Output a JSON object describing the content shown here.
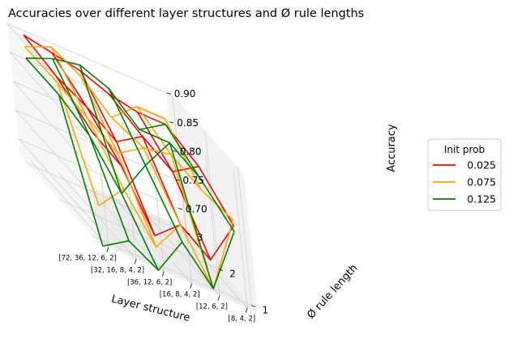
{
  "chart_data": {
    "type": "line",
    "title": "Accuracies over different layer structures and Ø rule lengths",
    "xlabel": "Layer structure",
    "ylabel": "Ø rule length",
    "zlabel": "Accuracy",
    "x_categories": [
      "[72, 36, 12, 6, 2]",
      "[32, 16, 8, 4, 2]",
      "[36, 12, 6, 2]",
      "[16, 8, 4, 2]",
      "[12, 6, 2]",
      "[8, 4, 2]"
    ],
    "y_ticks": [
      "1",
      "2",
      "3"
    ],
    "z_ticks": [
      "0.70",
      "0.75",
      "0.80",
      "0.85",
      "0.90"
    ],
    "zlim": [
      0.67,
      0.91
    ],
    "legend_title": "Init prob",
    "legend_placement": "center-right",
    "series": [
      {
        "name": "0.025",
        "color": "#ff0000",
        "values": [
          [
            0.86,
            0.82,
            0.72,
            0.76,
            0.72,
            0.8
          ],
          [
            0.89,
            0.86,
            0.82,
            0.85,
            0.81,
            0.84
          ],
          [
            0.9,
            0.89,
            0.88,
            0.86,
            0.85,
            0.85
          ]
        ]
      },
      {
        "name": "0.075",
        "color": "#ffa500",
        "values": [
          [
            0.73,
            0.78,
            0.7,
            0.76,
            0.67,
            0.81
          ],
          [
            0.88,
            0.84,
            0.8,
            0.83,
            0.84,
            0.8
          ],
          [
            0.88,
            0.9,
            0.87,
            0.82,
            0.86,
            0.86
          ]
        ]
      },
      {
        "name": "0.125",
        "color": "#008000",
        "values": [
          [
            0.66,
            0.69,
            0.66,
            0.73,
            0.67,
            0.79
          ],
          [
            0.86,
            0.81,
            0.73,
            0.8,
            0.86,
            0.82
          ],
          [
            0.86,
            0.88,
            0.89,
            0.87,
            0.82,
            0.85
          ]
        ]
      }
    ]
  }
}
